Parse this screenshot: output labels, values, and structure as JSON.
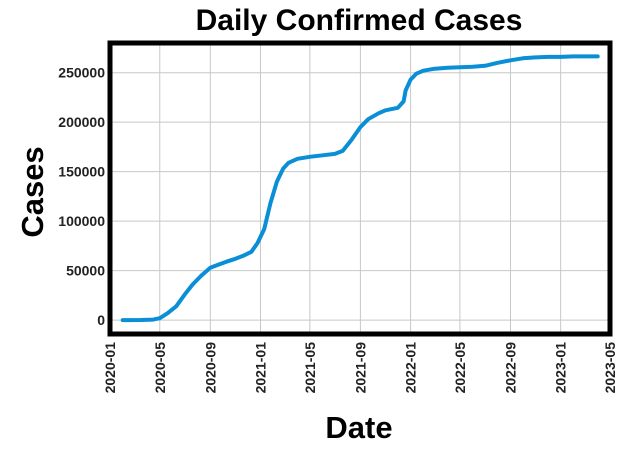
{
  "chart_data": {
    "type": "line",
    "title": "Daily Confirmed Cases",
    "xlabel": "Date",
    "ylabel": "Cases",
    "x_ticks": [
      "2020-01",
      "2020-05",
      "2020-09",
      "2021-01",
      "2021-05",
      "2021-09",
      "2022-01",
      "2022-05",
      "2022-09",
      "2023-01",
      "2023-05"
    ],
    "y_ticks": [
      0,
      50000,
      100000,
      150000,
      200000,
      250000
    ],
    "y_tick_labels": [
      "0",
      "50000",
      "100000",
      "150000",
      "200000",
      "250000"
    ],
    "xlim": [
      "2020-01-01",
      "2023-05-01"
    ],
    "ylim": [
      -14000,
      280000
    ],
    "grid": true,
    "series": [
      {
        "color": "#0a8fd6",
        "points": [
          [
            "2020-02-01",
            0
          ],
          [
            "2020-03-15",
            100
          ],
          [
            "2020-04-15",
            500
          ],
          [
            "2020-05-01",
            2000
          ],
          [
            "2020-05-20",
            7000
          ],
          [
            "2020-06-10",
            14000
          ],
          [
            "2020-07-01",
            26000
          ],
          [
            "2020-07-20",
            36000
          ],
          [
            "2020-08-10",
            45000
          ],
          [
            "2020-09-01",
            53000
          ],
          [
            "2020-09-20",
            56000
          ],
          [
            "2020-10-10",
            59000
          ],
          [
            "2020-11-01",
            62000
          ],
          [
            "2020-11-20",
            65000
          ],
          [
            "2020-12-10",
            69000
          ],
          [
            "2020-12-25",
            78000
          ],
          [
            "2021-01-10",
            92000
          ],
          [
            "2021-01-25",
            118000
          ],
          [
            "2021-02-10",
            140000
          ],
          [
            "2021-02-25",
            153000
          ],
          [
            "2021-03-10",
            159000
          ],
          [
            "2021-04-01",
            163000
          ],
          [
            "2021-05-01",
            165000
          ],
          [
            "2021-06-01",
            166500
          ],
          [
            "2021-07-01",
            168000
          ],
          [
            "2021-07-20",
            171000
          ],
          [
            "2021-08-10",
            182000
          ],
          [
            "2021-09-01",
            195000
          ],
          [
            "2021-09-20",
            203000
          ],
          [
            "2021-10-15",
            209000
          ],
          [
            "2021-11-01",
            212000
          ],
          [
            "2021-12-01",
            214500
          ],
          [
            "2021-12-15",
            221000
          ],
          [
            "2021-12-20",
            232000
          ],
          [
            "2022-01-01",
            243000
          ],
          [
            "2022-01-15",
            249000
          ],
          [
            "2022-02-01",
            252000
          ],
          [
            "2022-03-01",
            254000
          ],
          [
            "2022-04-01",
            255000
          ],
          [
            "2022-05-01",
            255500
          ],
          [
            "2022-06-01",
            256000
          ],
          [
            "2022-07-01",
            257000
          ],
          [
            "2022-08-01",
            260000
          ],
          [
            "2022-09-01",
            262500
          ],
          [
            "2022-10-01",
            264500
          ],
          [
            "2022-11-01",
            265500
          ],
          [
            "2022-12-01",
            266000
          ],
          [
            "2023-01-01",
            266000
          ],
          [
            "2023-02-01",
            266500
          ],
          [
            "2023-04-01",
            266500
          ]
        ]
      }
    ]
  }
}
